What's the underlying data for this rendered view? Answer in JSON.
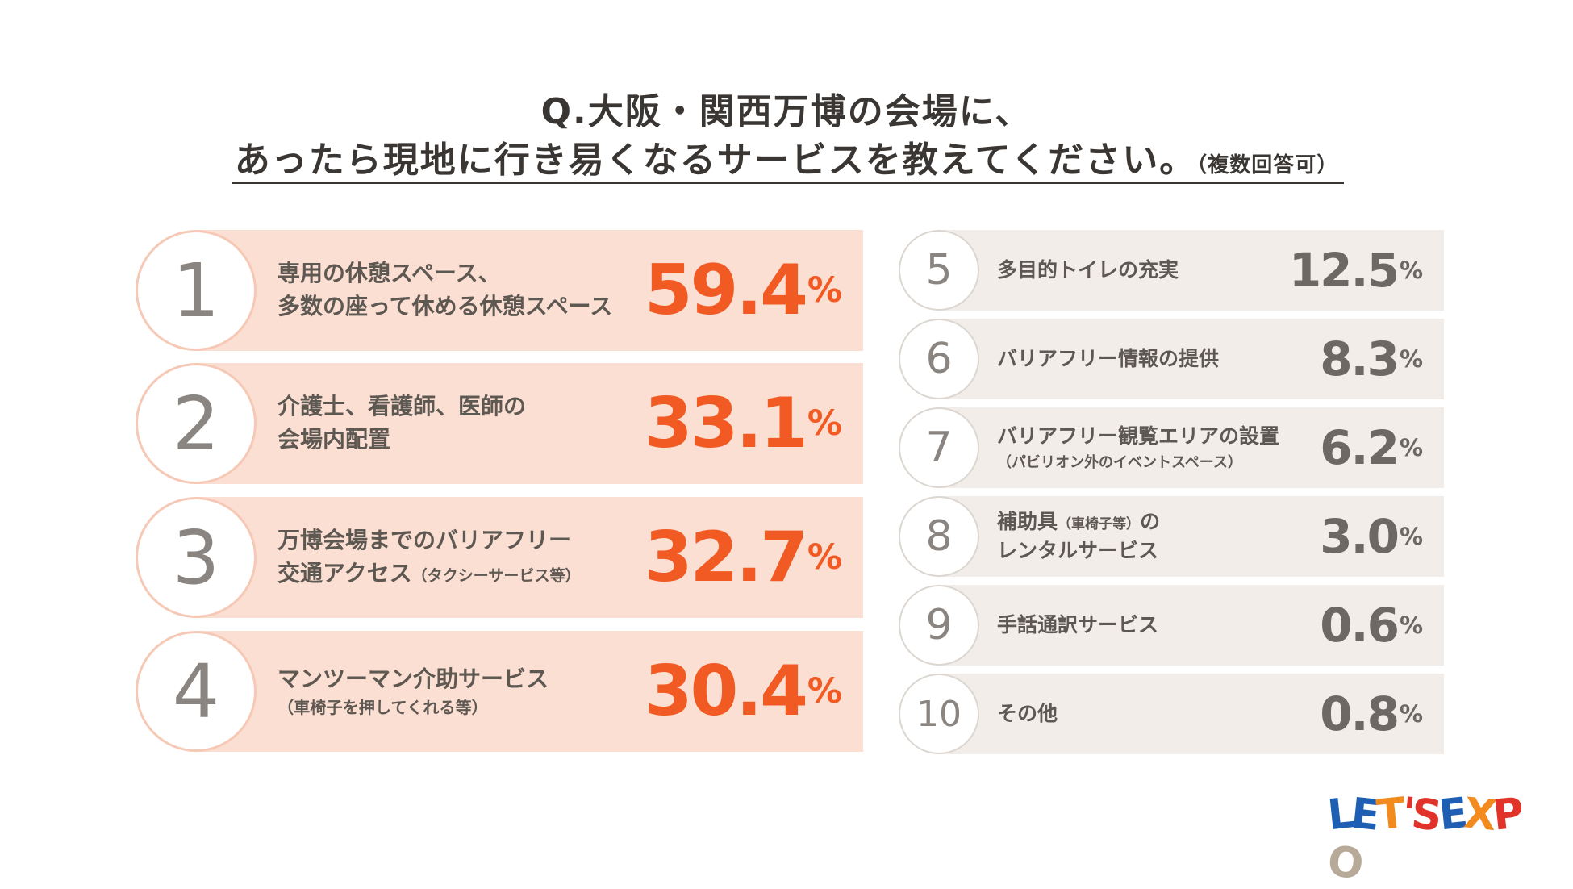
{
  "title": {
    "line1": "Q.大阪・関西万博の会場に、",
    "line2": "あったら現地に行き易くなるサービスを教えてください。",
    "note": "（複数回答可）"
  },
  "chart_data": {
    "type": "table",
    "unit": "%",
    "rows": [
      {
        "rank": "1",
        "label": "専用の休憩スペース、",
        "label2": "多数の座って休める休憩スペース",
        "value": "59.4"
      },
      {
        "rank": "2",
        "label": "介護士、看護師、医師の",
        "label2": "会場内配置",
        "value": "33.1"
      },
      {
        "rank": "3",
        "label": "万博会場までのバリアフリー",
        "label2": "交通アクセス",
        "label2_small": "（タクシーサービス等）",
        "value": "32.7"
      },
      {
        "rank": "4",
        "label": "マンツーマン介助サービス",
        "sub": "（車椅子を押してくれる等）",
        "value": "30.4"
      },
      {
        "rank": "5",
        "label": "多目的トイレの充実",
        "value": "12.5"
      },
      {
        "rank": "6",
        "label": "バリアフリー情報の提供",
        "value": "8.3"
      },
      {
        "rank": "7",
        "label": "バリアフリー観覧エリアの設置",
        "sub": "（パビリオン外のイベントスペース）",
        "value": "6.2"
      },
      {
        "rank": "8",
        "label": "補助具",
        "label_small": "（車椅子等）",
        "label_tail": "の",
        "label2": "レンタルサービス",
        "value": "3.0"
      },
      {
        "rank": "9",
        "label": "手話通訳サービス",
        "value": "0.6"
      },
      {
        "rank": "10",
        "label": "その他",
        "value": "0.8"
      }
    ]
  },
  "logo": {
    "letters": [
      "L",
      "E",
      "T",
      "'S",
      "E",
      "X",
      "P",
      "O"
    ],
    "colors": [
      "#1e5fb4",
      "#1e5fb4",
      "#f28a1e",
      "#e2332b",
      "#1e5fb4",
      "#f28a1e",
      "#e2332b",
      "#b7aa98"
    ]
  }
}
